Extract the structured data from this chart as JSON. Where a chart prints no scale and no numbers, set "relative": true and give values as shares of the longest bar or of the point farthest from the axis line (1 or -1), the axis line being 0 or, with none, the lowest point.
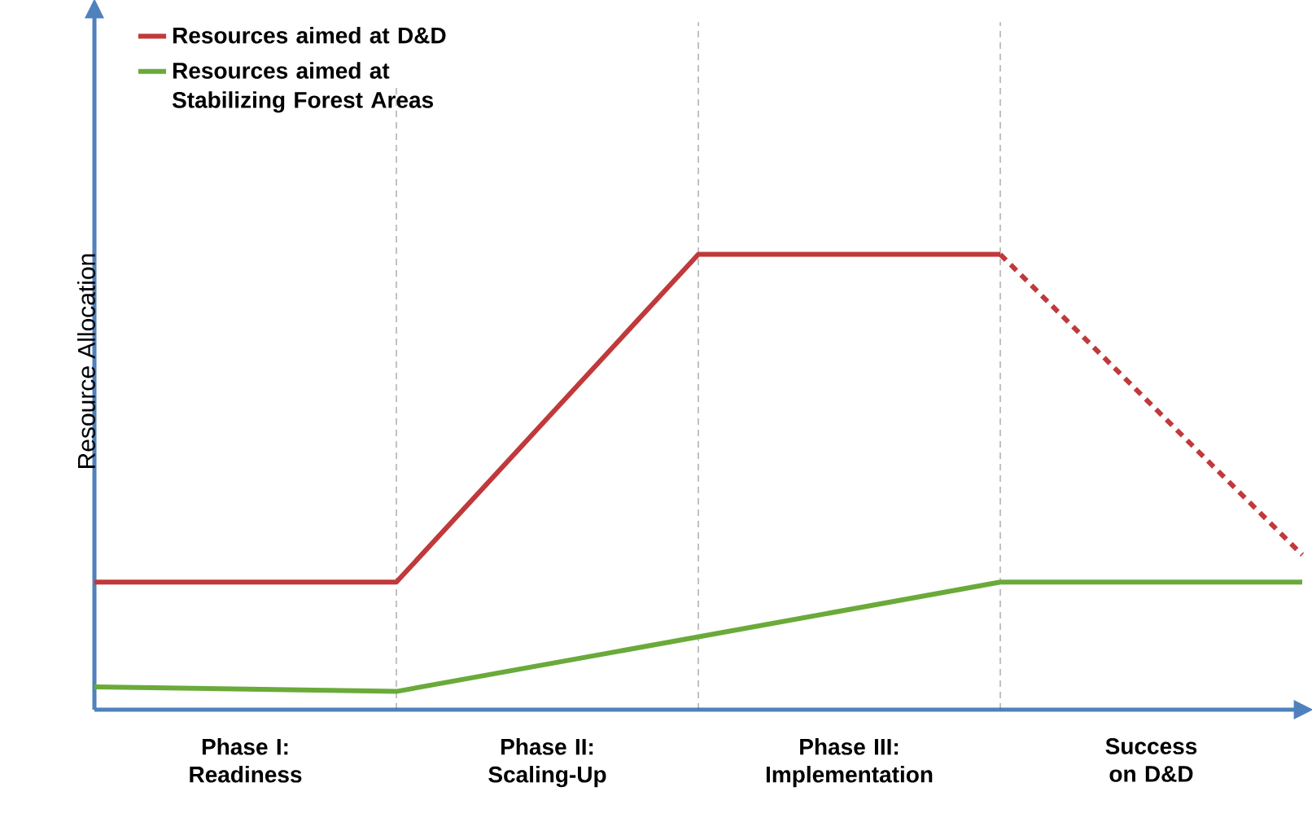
{
  "chart_data": {
    "type": "line",
    "relative": true,
    "ylabel": "Resource Allocation",
    "categories": [
      null,
      null,
      null,
      null,
      null
    ],
    "annotations": [
      "Phase I: Readiness",
      "Phase II: Scaling-Up",
      "Phase III: Implementation",
      "Success on D&D"
    ],
    "series": [
      {
        "name": "Resources aimed at D&D",
        "color": "#c0393b",
        "values": [
          0.28,
          0.28,
          1,
          1,
          null
        ]
      },
      {
        "color": "#c0393b",
        "values": [
          null,
          null,
          null,
          1,
          0.34
        ],
        "line_style": "dashed"
      },
      {
        "name": "Resources aimed at Stabilizing Forest Areas",
        "color": "#6aaa3a",
        "values": [
          0.05,
          0.04,
          0.16,
          0.28,
          0.28
        ]
      }
    ],
    "legend": "top left",
    "marker": "none",
    "line_style": "solid",
    "grid": "x"
  }
}
